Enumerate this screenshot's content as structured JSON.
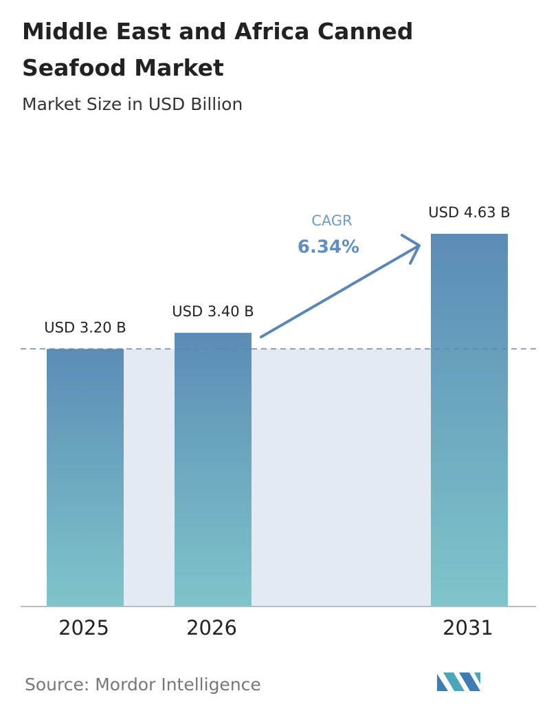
{
  "chart_data": {
    "type": "bar",
    "title": "Middle East and Africa Canned Seafood Market",
    "subtitle": "Market Size in USD Billion",
    "categories": [
      "2025",
      "2026",
      "2031"
    ],
    "values": [
      3.2,
      3.4,
      4.63
    ],
    "value_labels": [
      "USD 3.20 B",
      "USD 3.40 B",
      "USD 4.63 B"
    ],
    "colors": [
      "#5b8cb6",
      "#7fc5ca"
    ],
    "cagr_label": "CAGR",
    "cagr_value": "6.34%",
    "source": "Source: Mordor Intelligence"
  }
}
